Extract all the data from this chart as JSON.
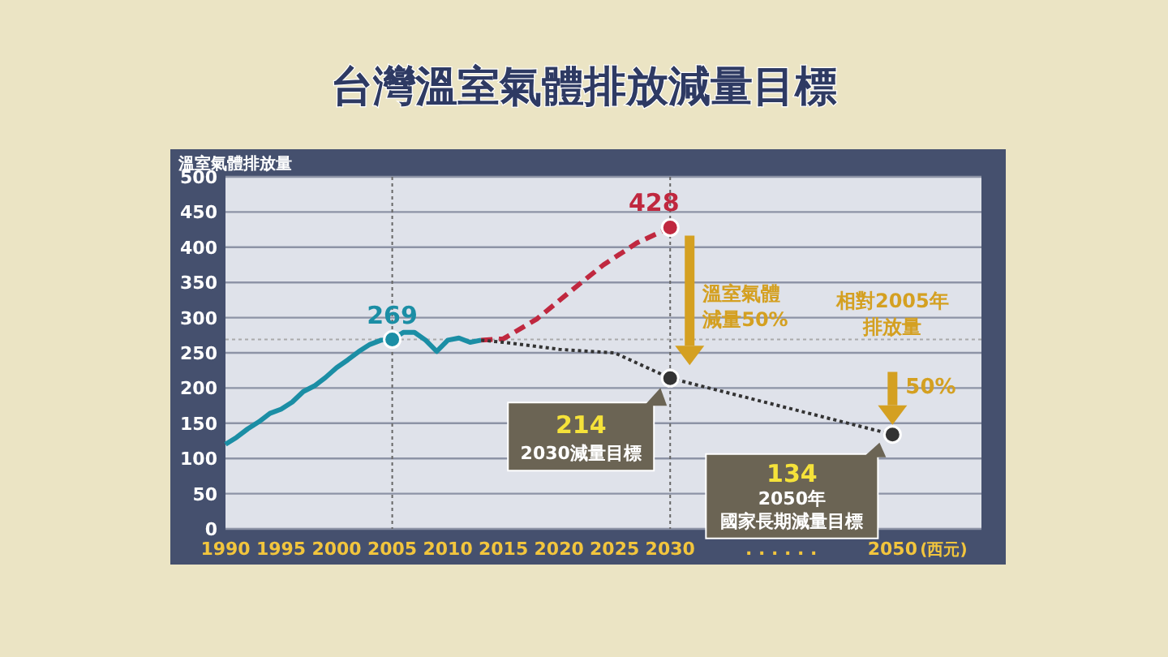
{
  "chart_data": {
    "type": "line",
    "title": "台灣溫室氣體排放減量目標",
    "ylabel": "溫室氣體排放量",
    "xlabel": "(西元)",
    "xlim": [
      1990,
      2058
    ],
    "xticks": [
      1990,
      1995,
      2000,
      2005,
      2010,
      2015,
      2020,
      2025,
      2030,
      2050
    ],
    "ylim": [
      0,
      500
    ],
    "yticks": [
      0,
      50,
      100,
      150,
      200,
      250,
      300,
      350,
      400,
      450,
      500
    ],
    "grid": "y",
    "series": [
      {
        "color": "#1b8ea5",
        "line_style": "solid",
        "x": [
          1990,
          1991,
          1992,
          1993,
          1994,
          1995,
          1996,
          1997,
          1998,
          1999,
          2000,
          2001,
          2002,
          2003,
          2004,
          2005,
          2006,
          2007,
          2008,
          2009,
          2010,
          2011,
          2012,
          2013
        ],
        "values": [
          120,
          130,
          142,
          152,
          164,
          170,
          180,
          195,
          203,
          215,
          229,
          240,
          252,
          262,
          268,
          269,
          279,
          279,
          268,
          252,
          268,
          271,
          265,
          268
        ]
      },
      {
        "color": "#c0283f",
        "line_style": "dashed",
        "x": [
          2013,
          2015,
          2018,
          2021,
          2024,
          2027,
          2030
        ],
        "values": [
          268,
          270,
          298,
          337,
          375,
          406,
          428
        ]
      },
      {
        "color": "#333333",
        "line_style": "dotted",
        "x": [
          2013,
          2015,
          2020,
          2025,
          2030,
          2050
        ],
        "values": [
          268,
          265,
          255,
          250,
          214,
          134
        ]
      }
    ],
    "ref_lines": [
      {
        "axis": "x",
        "value": 2005,
        "line_style": "dotted",
        "color": "#666666"
      },
      {
        "axis": "x",
        "value": 2030,
        "line_style": "dotted",
        "color": "#666666"
      },
      {
        "axis": "y",
        "value": 269,
        "line_style": "dotted",
        "color": "#aaaaaa"
      }
    ],
    "annotations": [
      {
        "text": "269",
        "x": 2005,
        "y": 269
      },
      {
        "text": "428",
        "x": 2030,
        "y": 428
      },
      "214",
      "2030減量目標",
      "134",
      "2050年",
      "國家長期減量目標",
      "溫室氣體",
      "減量50%",
      "相對2005年",
      "排放量",
      "50%",
      ". . . . . ."
    ]
  }
}
